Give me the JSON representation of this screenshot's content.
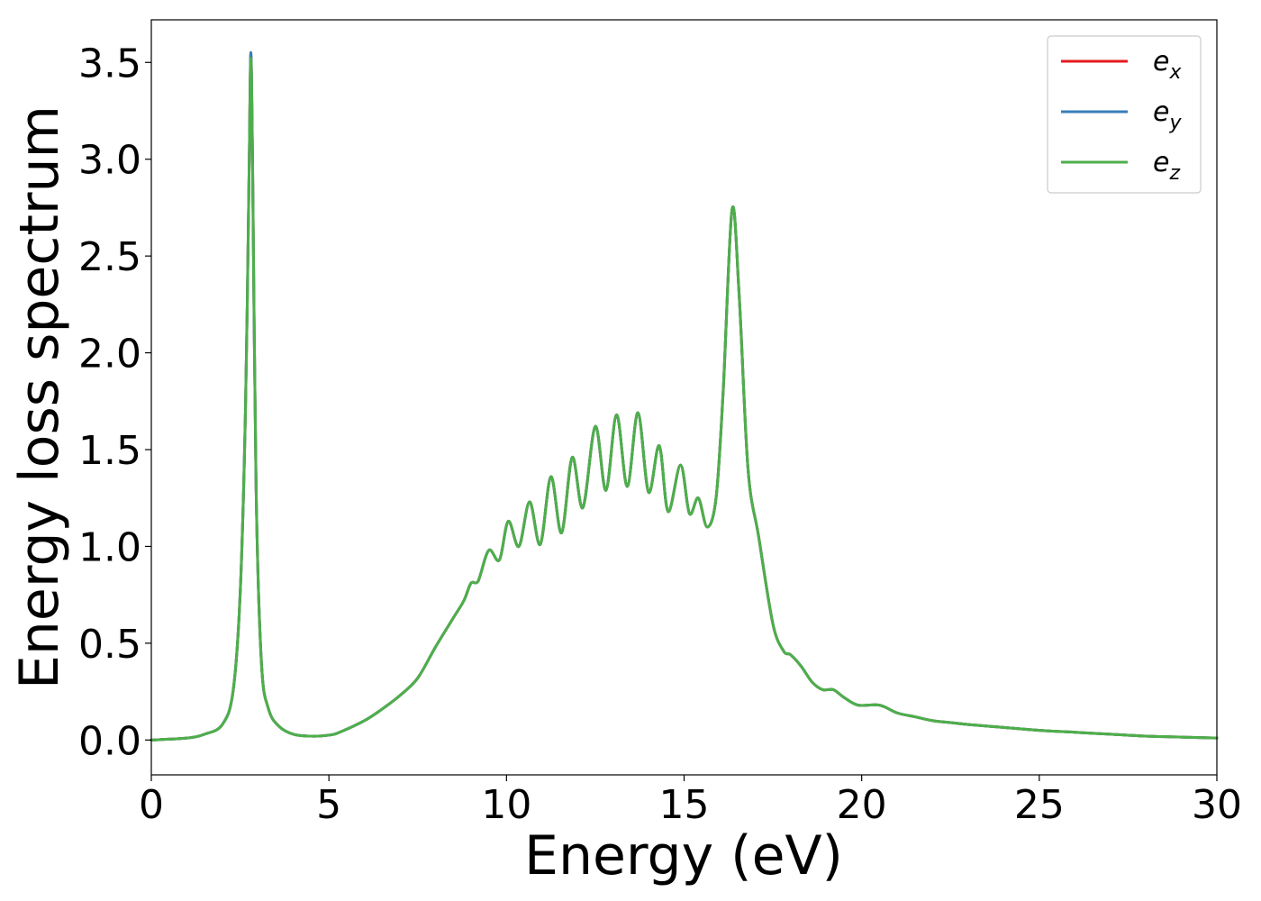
{
  "chart_data": {
    "type": "line",
    "title": "",
    "xlabel": "Energy (eV)",
    "ylabel": "Energy loss spectrum",
    "xlim": [
      0,
      30
    ],
    "ylim": [
      -0.18,
      3.72
    ],
    "xticks": [
      0,
      5,
      10,
      15,
      20,
      25,
      30
    ],
    "xtick_labels": [
      "0",
      "5",
      "10",
      "15",
      "20",
      "25",
      "30"
    ],
    "yticks": [
      0.0,
      0.5,
      1.0,
      1.5,
      2.0,
      2.5,
      3.0,
      3.5
    ],
    "ytick_labels": [
      "0.0",
      "0.5",
      "1.0",
      "1.5",
      "2.0",
      "2.5",
      "3.0",
      "3.5"
    ],
    "grid": false,
    "legend_position": "top-right",
    "x": [
      0,
      1,
      1.5,
      2,
      2.3,
      2.5,
      2.65,
      2.75,
      2.8,
      2.85,
      2.95,
      3.1,
      3.3,
      3.6,
      4.0,
      4.5,
      5.0,
      5.3,
      6.0,
      6.5,
      7.0,
      7.5,
      8.0,
      8.5,
      8.8,
      9.0,
      9.2,
      9.5,
      9.8,
      10.05,
      10.35,
      10.65,
      10.95,
      11.25,
      11.55,
      11.85,
      12.15,
      12.5,
      12.8,
      13.1,
      13.4,
      13.7,
      14.0,
      14.3,
      14.55,
      14.9,
      15.15,
      15.4,
      15.65,
      15.9,
      16.1,
      16.35,
      16.55,
      16.8,
      17.1,
      17.5,
      17.8,
      18.0,
      18.3,
      18.6,
      18.9,
      19.2,
      19.5,
      19.9,
      20.5,
      21.0,
      21.5,
      22.0,
      22.5,
      23.0,
      24.0,
      25.0,
      26.0,
      27.0,
      28.0,
      29.0,
      30.0
    ],
    "series": [
      {
        "name": "e_x",
        "color": "#e41a1c",
        "values": [
          0.0,
          0.01,
          0.03,
          0.08,
          0.25,
          0.75,
          1.7,
          2.9,
          3.54,
          3.0,
          1.3,
          0.4,
          0.16,
          0.07,
          0.03,
          0.02,
          0.025,
          0.04,
          0.1,
          0.16,
          0.23,
          0.32,
          0.48,
          0.63,
          0.72,
          0.81,
          0.82,
          0.98,
          0.93,
          1.13,
          1.0,
          1.23,
          1.01,
          1.36,
          1.07,
          1.46,
          1.2,
          1.62,
          1.29,
          1.68,
          1.31,
          1.69,
          1.28,
          1.52,
          1.18,
          1.42,
          1.17,
          1.25,
          1.1,
          1.25,
          1.8,
          2.74,
          2.3,
          1.4,
          1.05,
          0.6,
          0.46,
          0.44,
          0.38,
          0.3,
          0.26,
          0.26,
          0.22,
          0.18,
          0.18,
          0.14,
          0.12,
          0.1,
          0.09,
          0.08,
          0.065,
          0.05,
          0.04,
          0.03,
          0.02,
          0.015,
          0.01
        ]
      },
      {
        "name": "e_y",
        "color": "#377eb8",
        "values": [
          0.0,
          0.01,
          0.03,
          0.08,
          0.25,
          0.75,
          1.7,
          2.9,
          3.55,
          3.0,
          1.3,
          0.4,
          0.16,
          0.07,
          0.03,
          0.02,
          0.025,
          0.04,
          0.1,
          0.16,
          0.23,
          0.32,
          0.48,
          0.63,
          0.72,
          0.81,
          0.82,
          0.98,
          0.93,
          1.13,
          1.0,
          1.23,
          1.01,
          1.36,
          1.07,
          1.46,
          1.2,
          1.62,
          1.29,
          1.68,
          1.31,
          1.69,
          1.28,
          1.52,
          1.18,
          1.42,
          1.17,
          1.25,
          1.1,
          1.25,
          1.8,
          2.74,
          2.3,
          1.4,
          1.05,
          0.6,
          0.46,
          0.44,
          0.38,
          0.3,
          0.26,
          0.26,
          0.22,
          0.18,
          0.18,
          0.14,
          0.12,
          0.1,
          0.09,
          0.08,
          0.065,
          0.05,
          0.04,
          0.03,
          0.02,
          0.015,
          0.01
        ]
      },
      {
        "name": "e_z",
        "color": "#4daf4a",
        "values": [
          0.0,
          0.01,
          0.03,
          0.08,
          0.25,
          0.75,
          1.7,
          2.9,
          3.52,
          3.0,
          1.3,
          0.4,
          0.16,
          0.07,
          0.03,
          0.02,
          0.025,
          0.04,
          0.1,
          0.16,
          0.23,
          0.32,
          0.48,
          0.63,
          0.72,
          0.81,
          0.82,
          0.98,
          0.93,
          1.13,
          1.0,
          1.23,
          1.01,
          1.36,
          1.07,
          1.46,
          1.2,
          1.62,
          1.29,
          1.68,
          1.31,
          1.69,
          1.28,
          1.52,
          1.18,
          1.42,
          1.17,
          1.25,
          1.1,
          1.25,
          1.8,
          2.74,
          2.3,
          1.4,
          1.05,
          0.6,
          0.46,
          0.44,
          0.38,
          0.3,
          0.26,
          0.26,
          0.22,
          0.18,
          0.18,
          0.14,
          0.12,
          0.1,
          0.09,
          0.08,
          0.065,
          0.05,
          0.04,
          0.03,
          0.02,
          0.015,
          0.01
        ]
      }
    ],
    "legend": [
      {
        "base": "e",
        "sub": "x",
        "color": "#e41a1c"
      },
      {
        "base": "e",
        "sub": "y",
        "color": "#377eb8"
      },
      {
        "base": "e",
        "sub": "z",
        "color": "#4daf4a"
      }
    ]
  }
}
